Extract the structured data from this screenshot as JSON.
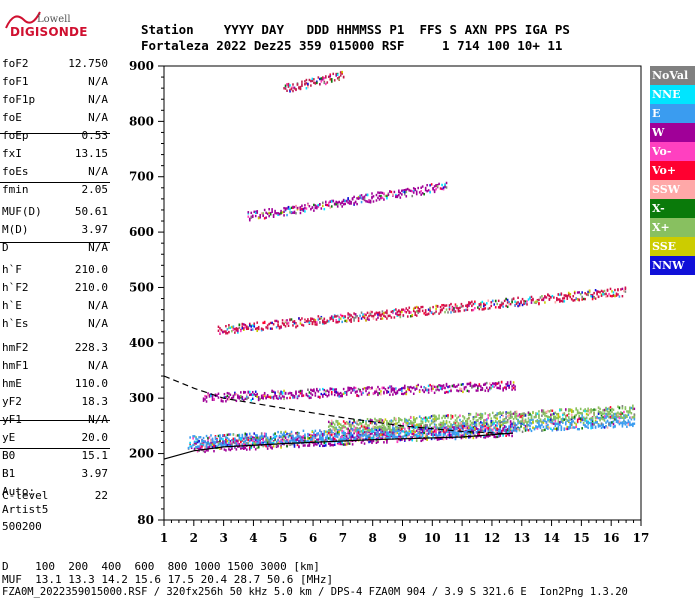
{
  "logo": {
    "brand_top": "Lowell",
    "brand_main": "DIGISONDE"
  },
  "header": {
    "row1": "Station    YYYY DAY   DDD HHMMSS P1  FFS S AXN PPS IGA PS",
    "row2": "Fortaleza 2022 Dez25 359 015000 RSF     1 714 100 10+ 11"
  },
  "params": [
    {
      "label": "foF2",
      "value": "12.750"
    },
    {
      "label": "foF1",
      "value": "N/A"
    },
    {
      "label": "foF1p",
      "value": "N/A"
    },
    {
      "label": "foE",
      "value": "N/A"
    },
    {
      "label": "foEp",
      "value": "0.53"
    },
    {
      "label": "fxI",
      "value": "13.15"
    },
    {
      "label": "foEs",
      "value": "N/A"
    },
    {
      "label": "fmin",
      "value": "2.05"
    },
    {
      "label": "MUF(D)",
      "value": "50.61"
    },
    {
      "label": "M(D)",
      "value": "3.97"
    },
    {
      "label": "D",
      "value": "N/A"
    },
    {
      "label": "h`F",
      "value": "210.0"
    },
    {
      "label": "h`F2",
      "value": "210.0"
    },
    {
      "label": "h`E",
      "value": "N/A"
    },
    {
      "label": "h`Es",
      "value": "N/A"
    },
    {
      "label": "hmF2",
      "value": "228.3"
    },
    {
      "label": "hmF1",
      "value": "N/A"
    },
    {
      "label": "hmE",
      "value": "110.0"
    },
    {
      "label": "yF2",
      "value": "18.3"
    },
    {
      "label": "yF1",
      "value": "N/A"
    },
    {
      "label": "yE",
      "value": "20.0"
    },
    {
      "label": "B0",
      "value": "15.1"
    },
    {
      "label": "B1",
      "value": "3.97"
    },
    {
      "label": "C-level",
      "value": "22"
    }
  ],
  "autoscaling": {
    "line1": "Auto:",
    "line2": "Artist5",
    "line3": "500200"
  },
  "legend": [
    {
      "label": "NoVal",
      "color": "#808080"
    },
    {
      "label": "NNE",
      "color": "#00e5ff"
    },
    {
      "label": "E",
      "color": "#3a9cf0"
    },
    {
      "label": "W",
      "color": "#a00098"
    },
    {
      "label": "Vo-",
      "color": "#ff40c0"
    },
    {
      "label": "Vo+",
      "color": "#ff0030"
    },
    {
      "label": "SSW",
      "color": "#ffa8a8"
    },
    {
      "label": "X-",
      "color": "#0a7a0a"
    },
    {
      "label": "X+",
      "color": "#88c060"
    },
    {
      "label": "SSE",
      "color": "#cccc00"
    },
    {
      "label": "NNW",
      "color": "#1010d8"
    }
  ],
  "footer": {
    "line1": "D    100  200  400  600  800 1000 1500 3000 [km]",
    "line2": "MUF  13.1 13.3 14.2 15.6 17.5 20.4 28.7 50.6 [MHz]",
    "line3": "FZA0M_2022359015000.RSF / 320fx256h 50 kHz 5.0 km / DPS-4 FZA0M 904 / 3.9 S 321.6 E  Ion2Png 1.3.20"
  },
  "chart_data": {
    "type": "scatter",
    "xlim": [
      1,
      17
    ],
    "ylim": [
      80,
      900
    ],
    "x_ticks": [
      1,
      2,
      3,
      4,
      5,
      6,
      7,
      8,
      9,
      10,
      11,
      12,
      13,
      14,
      15,
      16,
      17
    ],
    "y_ticks": [
      80,
      200,
      300,
      400,
      500,
      600,
      700,
      800,
      900
    ],
    "grid": false,
    "traces": [
      {
        "name": "F2 O-trace",
        "color": "#a00098",
        "x_range": [
          2.0,
          12.8
        ],
        "h_start": 215,
        "h_end": 245
      },
      {
        "name": "F2 O-trace (E)",
        "color": "#3a9cf0",
        "x_range": [
          1.8,
          16.8
        ],
        "h_start": 222,
        "h_end": 262
      },
      {
        "name": "F2 X-trace",
        "color": "#88c060",
        "x_range": [
          6.5,
          16.8
        ],
        "h_start": 250,
        "h_end": 278
      },
      {
        "name": "2nd hop",
        "color": "#a00098",
        "x_range": [
          2.3,
          12.8
        ],
        "h_start": 303,
        "h_end": 325
      },
      {
        "name": "3rd hop",
        "color": "#d0104a",
        "x_range": [
          2.8,
          16.5
        ],
        "h_start": 425,
        "h_end": 495
      },
      {
        "name": "4th hop",
        "color": "#a00098",
        "x_range": [
          3.8,
          10.5
        ],
        "h_start": 630,
        "h_end": 685
      },
      {
        "name": "5th hop",
        "color": "#c02050",
        "x_range": [
          5.0,
          7.0
        ],
        "h_start": 860,
        "h_end": 885
      }
    ],
    "profile_curves": [
      {
        "name": "lower",
        "style": "solid",
        "points": [
          [
            1,
            190
          ],
          [
            2,
            205
          ],
          [
            3,
            212
          ],
          [
            5,
            218
          ],
          [
            8,
            225
          ],
          [
            11,
            230
          ],
          [
            12.7,
            237
          ]
        ]
      },
      {
        "name": "upper",
        "style": "dashed",
        "points": [
          [
            1,
            340
          ],
          [
            2,
            318
          ],
          [
            3,
            300
          ],
          [
            5,
            282
          ],
          [
            7,
            265
          ],
          [
            9,
            250
          ],
          [
            11,
            240
          ],
          [
            12.5,
            236
          ]
        ]
      }
    ]
  }
}
